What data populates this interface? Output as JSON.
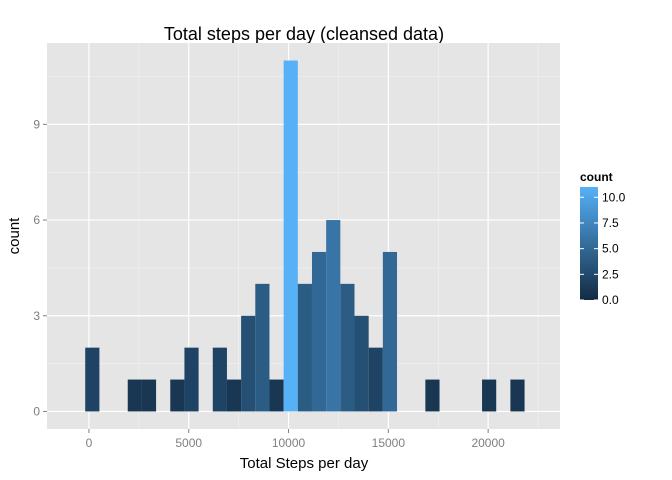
{
  "chart_data": {
    "type": "histogram",
    "title": "Total steps per day (cleansed data)",
    "xlabel": "Total Steps per day",
    "ylabel": "count",
    "xlim": [
      -2100,
      23600
    ],
    "ylim": [
      -0.55,
      11.55
    ],
    "x_ticks": [
      0,
      5000,
      10000,
      15000,
      20000
    ],
    "x_tick_labels": [
      "0",
      "5000",
      "10000",
      "15000",
      "20000"
    ],
    "y_ticks": [
      0,
      3,
      6,
      9
    ],
    "y_tick_labels": [
      "0",
      "3",
      "6",
      "9"
    ],
    "bin_width": 710,
    "bins": [
      {
        "x": 170,
        "count": 2
      },
      {
        "x": 2300,
        "count": 1
      },
      {
        "x": 3010,
        "count": 1
      },
      {
        "x": 4430,
        "count": 1
      },
      {
        "x": 5140,
        "count": 2
      },
      {
        "x": 6560,
        "count": 2
      },
      {
        "x": 7270,
        "count": 1
      },
      {
        "x": 7980,
        "count": 3
      },
      {
        "x": 8690,
        "count": 4
      },
      {
        "x": 9400,
        "count": 1
      },
      {
        "x": 10110,
        "count": 11
      },
      {
        "x": 10820,
        "count": 4
      },
      {
        "x": 11530,
        "count": 5
      },
      {
        "x": 12240,
        "count": 6
      },
      {
        "x": 12950,
        "count": 4
      },
      {
        "x": 13660,
        "count": 3
      },
      {
        "x": 14370,
        "count": 2
      },
      {
        "x": 15080,
        "count": 5
      },
      {
        "x": 17210,
        "count": 1
      },
      {
        "x": 20050,
        "count": 1
      },
      {
        "x": 21470,
        "count": 1
      }
    ],
    "fill_scale": {
      "name": "count",
      "low_color": "#132B43",
      "high_color": "#56B1F7",
      "domain": [
        0,
        11
      ],
      "breaks": [
        0,
        2.5,
        5,
        7.5,
        10
      ],
      "break_labels": [
        "0.0",
        "2.5",
        "5.0",
        "7.5",
        "10.0"
      ]
    },
    "grid": true,
    "panel_background": "#E5E5E5",
    "grid_color": "#FFFFFF",
    "legend_position": "right"
  }
}
